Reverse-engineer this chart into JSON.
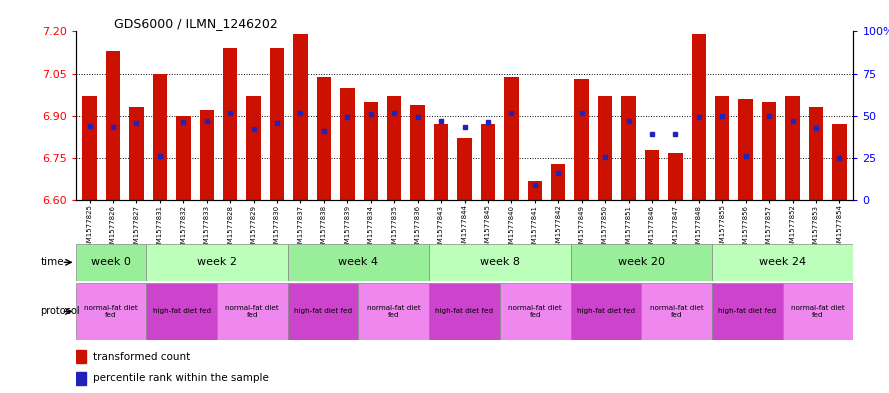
{
  "title": "GDS6000 / ILMN_1246202",
  "samples": [
    "GSM1577825",
    "GSM1577826",
    "GSM1577827",
    "GSM1577831",
    "GSM1577832",
    "GSM1577833",
    "GSM1577828",
    "GSM1577829",
    "GSM1577830",
    "GSM1577837",
    "GSM1577838",
    "GSM1577839",
    "GSM1577834",
    "GSM1577835",
    "GSM1577836",
    "GSM1577843",
    "GSM1577844",
    "GSM1577845",
    "GSM1577840",
    "GSM1577841",
    "GSM1577842",
    "GSM1577849",
    "GSM1577850",
    "GSM1577851",
    "GSM1577846",
    "GSM1577847",
    "GSM1577848",
    "GSM1577855",
    "GSM1577856",
    "GSM1577857",
    "GSM1577852",
    "GSM1577853",
    "GSM1577854"
  ],
  "bar_values": [
    6.97,
    7.13,
    6.93,
    7.05,
    6.9,
    6.92,
    7.14,
    6.97,
    7.14,
    7.19,
    7.04,
    7.0,
    6.95,
    6.97,
    6.94,
    6.87,
    6.82,
    6.87,
    7.04,
    6.67,
    6.73,
    7.03,
    6.97,
    6.97,
    6.78,
    6.77,
    7.19,
    6.97,
    6.96,
    6.95,
    6.97,
    6.93,
    6.87
  ],
  "percentile_values": [
    6.865,
    6.862,
    6.875,
    6.758,
    6.878,
    6.882,
    6.912,
    6.854,
    6.875,
    6.912,
    6.845,
    6.895,
    6.908,
    6.912,
    6.895,
    6.882,
    6.862,
    6.878,
    6.912,
    6.655,
    6.696,
    6.912,
    6.755,
    6.882,
    6.835,
    6.835,
    6.895,
    6.898,
    6.758,
    6.898,
    6.882,
    6.858,
    6.752
  ],
  "ylim_left": [
    6.6,
    7.2
  ],
  "ylim_right": [
    0,
    100
  ],
  "yticks_left": [
    6.6,
    6.75,
    6.9,
    7.05,
    7.2
  ],
  "yticks_right": [
    0,
    25,
    50,
    75,
    100
  ],
  "bar_color": "#CC1100",
  "blue_color": "#2222BB",
  "week_labels": [
    "week 0",
    "week 2",
    "week 4",
    "week 8",
    "week 20",
    "week 24"
  ],
  "week_sample_ranges": [
    [
      0,
      3
    ],
    [
      3,
      9
    ],
    [
      9,
      15
    ],
    [
      15,
      21
    ],
    [
      21,
      27
    ],
    [
      27,
      33
    ]
  ],
  "week_colors": [
    "#99ee99",
    "#bbffbb",
    "#99ee99",
    "#bbffbb",
    "#99ee99",
    "#bbffbb"
  ],
  "protocol_groups": [
    {
      "label": "normal-fat diet\nfed",
      "start": 0,
      "end": 3,
      "color": "#ee88ee"
    },
    {
      "label": "high-fat diet fed",
      "start": 3,
      "end": 6,
      "color": "#cc44cc"
    },
    {
      "label": "normal-fat diet\nfed",
      "start": 6,
      "end": 9,
      "color": "#ee88ee"
    },
    {
      "label": "high-fat diet fed",
      "start": 9,
      "end": 12,
      "color": "#cc44cc"
    },
    {
      "label": "normal-fat diet\nfed",
      "start": 12,
      "end": 15,
      "color": "#ee88ee"
    },
    {
      "label": "high-fat diet fed",
      "start": 15,
      "end": 18,
      "color": "#cc44cc"
    },
    {
      "label": "normal-fat diet\nfed",
      "start": 18,
      "end": 21,
      "color": "#ee88ee"
    },
    {
      "label": "high-fat diet fed",
      "start": 21,
      "end": 24,
      "color": "#cc44cc"
    },
    {
      "label": "normal-fat diet\nfed",
      "start": 24,
      "end": 27,
      "color": "#ee88ee"
    },
    {
      "label": "high-fat diet fed",
      "start": 27,
      "end": 30,
      "color": "#cc44cc"
    },
    {
      "label": "normal-fat diet\nfed",
      "start": 30,
      "end": 33,
      "color": "#ee88ee"
    }
  ],
  "legend_labels": [
    "transformed count",
    "percentile rank within the sample"
  ]
}
